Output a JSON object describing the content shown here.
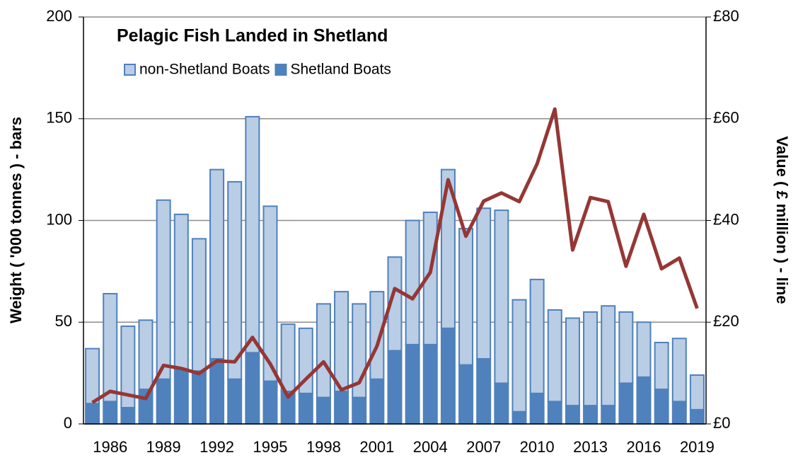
{
  "chart_data": {
    "type": "bar",
    "title": "Pelagic Fish Landed in Shetland",
    "ylabel": "Weight ( '000 tonnes ) - bars",
    "y2label": "Value ( £ million ) - line",
    "categories": [
      null,
      "1986",
      null,
      null,
      "1989",
      null,
      null,
      "1992",
      null,
      null,
      "1995",
      null,
      null,
      "1998",
      null,
      null,
      "2001",
      null,
      null,
      "2004",
      null,
      null,
      "2007",
      null,
      null,
      "2010",
      null,
      null,
      "2013",
      null,
      null,
      "2016",
      null,
      null,
      "2019"
    ],
    "series": [
      {
        "name": "non-Shetland Boats",
        "type": "bar",
        "color": "#b9cde5",
        "values": [
          27,
          53,
          40,
          34,
          88,
          76,
          65,
          93,
          97,
          116,
          86,
          33,
          32,
          46,
          49,
          46,
          43,
          46,
          61,
          65,
          78,
          67,
          74,
          85,
          55,
          56,
          45,
          43,
          46,
          49,
          35,
          27,
          23,
          31,
          17
        ]
      },
      {
        "name": "Shetland Boats",
        "type": "bar",
        "color": "#4f81bd",
        "values": [
          10,
          11,
          8,
          17,
          22,
          27,
          26,
          32,
          22,
          35,
          21,
          16,
          15,
          13,
          16,
          13,
          22,
          36,
          39,
          39,
          47,
          29,
          32,
          20,
          6,
          15,
          11,
          9,
          9,
          9,
          20,
          23,
          17,
          11,
          7
        ]
      },
      {
        "type": "line",
        "axis": "y2",
        "color": "#953735",
        "values": [
          4.2,
          6.4,
          5.7,
          5.0,
          11.5,
          10.9,
          9.9,
          12.4,
          12.2,
          17.0,
          11.8,
          5.3,
          8.8,
          12.2,
          6.7,
          8.1,
          15.3,
          26.6,
          24.6,
          29.8,
          48.0,
          36.9,
          43.8,
          45.4,
          43.7,
          51.1,
          61.9,
          34.2,
          44.5,
          43.7,
          31.0,
          41.2,
          30.5,
          32.6,
          22.7
        ]
      }
    ],
    "ylim": [
      0,
      200
    ],
    "yticks": [
      0,
      50,
      100,
      150,
      200
    ],
    "y2lim": [
      0,
      80
    ],
    "y2ticks": [
      {
        "value": 0,
        "label": "£0"
      },
      {
        "value": 20,
        "label": "£20"
      },
      {
        "value": 40,
        "label": "£40"
      },
      {
        "value": 60,
        "label": "£60"
      },
      {
        "value": 80,
        "label": "£80"
      }
    ],
    "grid": true,
    "legend": "top-left"
  }
}
